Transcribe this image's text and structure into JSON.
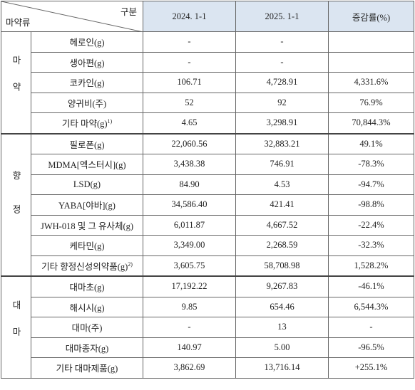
{
  "header": {
    "corner_top": "구분",
    "corner_bottom": "마약류",
    "columns": [
      "2024. 1-1",
      "2025. 1-1",
      "증감률(%)"
    ]
  },
  "groups": [
    {
      "label": "마약",
      "rows": [
        {
          "item": "헤로인(g)",
          "values": [
            "-",
            "-",
            ""
          ]
        },
        {
          "item": "생아편(g)",
          "values": [
            "-",
            "-",
            ""
          ]
        },
        {
          "item": "코카인(g)",
          "values": [
            "106.71",
            "4,728.91",
            "4,331.6%"
          ]
        },
        {
          "item": "양귀비(주)",
          "values": [
            "52",
            "92",
            "76.9%"
          ]
        },
        {
          "item": "기타 마약(g)",
          "note": "1)",
          "values": [
            "4.65",
            "3,298.91",
            "70,844.3%"
          ]
        }
      ]
    },
    {
      "label": "향정",
      "rows": [
        {
          "item": "필로폰(g)",
          "values": [
            "22,060.56",
            "32,883.21",
            "49.1%"
          ]
        },
        {
          "item": "MDMA[엑스터시](g)",
          "values": [
            "3,438.38",
            "746.91",
            "-78.3%"
          ]
        },
        {
          "item": "LSD(g)",
          "values": [
            "84.90",
            "4.53",
            "-94.7%"
          ]
        },
        {
          "item": "YABA[야바](g)",
          "values": [
            "34,586.40",
            "421.41",
            "-98.8%"
          ]
        },
        {
          "item": "JWH-018 및 그 유사체(g)",
          "values": [
            "6,011.87",
            "4,667.52",
            "-22.4%"
          ]
        },
        {
          "item": "케타민(g)",
          "values": [
            "3,349.00",
            "2,268.59",
            "-32.3%"
          ]
        },
        {
          "item": "기타 향정신성의약품(g)",
          "note": "2)",
          "values": [
            "3,605.75",
            "58,708.98",
            "1,528.2%"
          ]
        }
      ]
    },
    {
      "label": "대마",
      "rows": [
        {
          "item": "대마초(g)",
          "values": [
            "17,192.22",
            "9,267.83",
            "-46.1%"
          ]
        },
        {
          "item": "해시시(g)",
          "values": [
            "9.85",
            "654.46",
            "6,544.3%"
          ]
        },
        {
          "item": "대마(주)",
          "values": [
            "-",
            "13",
            "-"
          ]
        },
        {
          "item": "대마종자(g)",
          "values": [
            "140.97",
            "5.00",
            "-96.5%"
          ]
        },
        {
          "item": "기타 대마제품(g)",
          "values": [
            "3,862.69",
            "13,716.14",
            "+255.1%"
          ]
        }
      ]
    }
  ]
}
